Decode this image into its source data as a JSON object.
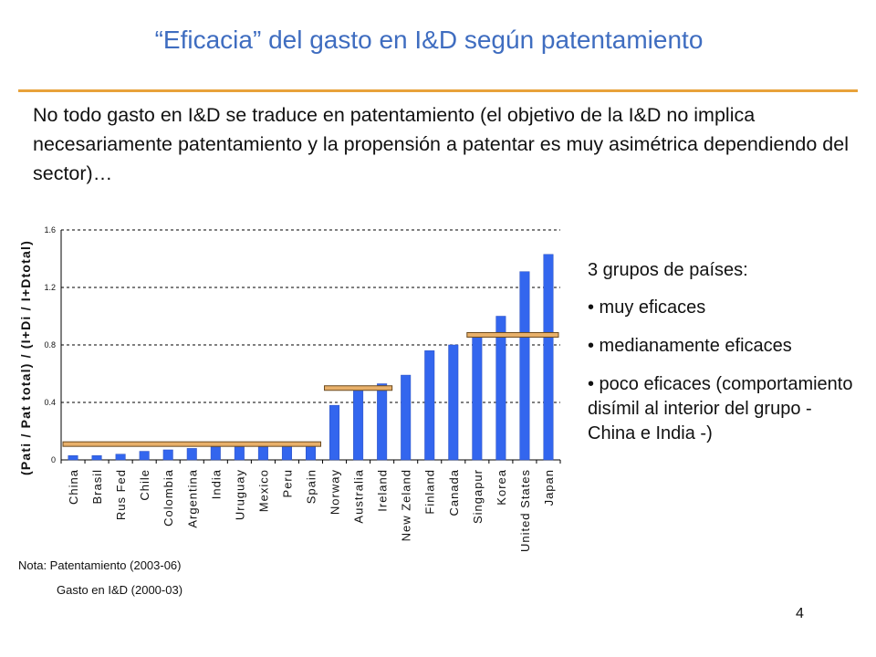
{
  "slide": {
    "title": "“Eficacia” del gasto en I&D según patentamiento",
    "intro": "No todo gasto en I&D se traduce en patentamiento (el objetivo de la I&D no implica necesariamente patentamiento y la propensión a patentar es muy asimétrica dependiendo del sector)…",
    "groups_header": "3 grupos de países:",
    "groups": [
      "• muy eficaces",
      "• medianamente eficaces",
      "• poco eficaces (comportamiento disímil al interior del grupo - China e India -)"
    ],
    "note_line1": "Nota: Patentamiento (2003-06)",
    "note_line2": "Gasto en I&D (2000-03)",
    "page_number": "4",
    "colors": {
      "title": "#3f6dc0",
      "rule": "#e8a23a",
      "bar": "#3366ee",
      "group_band": "#e8b06a"
    }
  },
  "chart_data": {
    "type": "bar",
    "ylabel": "(Pati / Pat total) / (I+Di / I+Dtotal)",
    "xlabel": "",
    "ylim": [
      0,
      1.6
    ],
    "yticks": [
      "0",
      "0.4",
      "0.8",
      "1.2",
      "1.6"
    ],
    "grid": true,
    "categories": [
      "China",
      "Brasil",
      "Rus Fed",
      "Chile",
      "Colombia",
      "Argentina",
      "India",
      "Uruguay",
      "Mexico",
      "Peru",
      "Spain",
      "Norway",
      "Australia",
      "Ireland",
      "New Zeland",
      "Finland",
      "Canada",
      "Singapur",
      "Korea",
      "United States",
      "Japan"
    ],
    "values": [
      0.03,
      0.03,
      0.04,
      0.06,
      0.07,
      0.08,
      0.09,
      0.09,
      0.09,
      0.1,
      0.11,
      0.38,
      0.49,
      0.53,
      0.59,
      0.76,
      0.8,
      0.86,
      1.0,
      1.31,
      1.43
    ],
    "group_levels": [
      {
        "from": "China",
        "to": "Spain",
        "value": 0.11
      },
      {
        "from": "Norway",
        "to": "Ireland",
        "value": 0.5
      },
      {
        "from": "Singapur",
        "to": "Japan",
        "value": 0.87
      }
    ]
  }
}
